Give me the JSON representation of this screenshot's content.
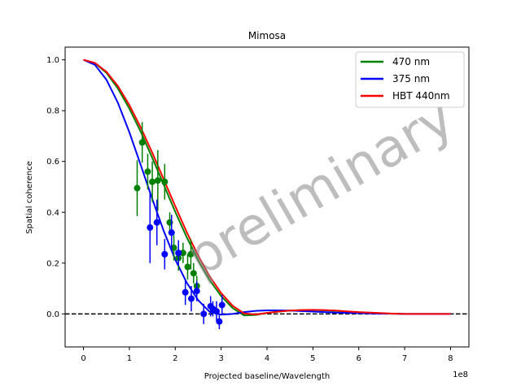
{
  "chart_data": {
    "type": "scatter",
    "title": "Mimosa",
    "xlabel": "Projected baseline/Wavelength",
    "ylabel": "Spatial coherence",
    "x_offset_text": "1e8",
    "xlim": [
      -0.4,
      8.4
    ],
    "ylim": [
      -0.13,
      1.05
    ],
    "x_ticks": [
      0,
      1,
      2,
      3,
      4,
      5,
      6,
      7,
      8
    ],
    "x_tick_labels": [
      "0",
      "1",
      "2",
      "3",
      "4",
      "5",
      "6",
      "7",
      "8"
    ],
    "y_ticks": [
      0.0,
      0.2,
      0.4,
      0.6,
      0.8,
      1.0
    ],
    "y_tick_labels": [
      "0.0",
      "0.2",
      "0.4",
      "0.6",
      "0.8",
      "1.0"
    ],
    "grid": false,
    "legend_position": "top-right",
    "watermark": "preliminary",
    "reference_line": {
      "y": 0.0,
      "style": "dashed",
      "color": "#000000"
    },
    "curves": [
      {
        "name": "470 nm",
        "color": "#008000",
        "x": [
          0,
          0.25,
          0.5,
          0.75,
          1,
          1.25,
          1.5,
          1.75,
          2,
          2.25,
          2.5,
          2.75,
          3,
          3.25,
          3.5,
          3.75,
          4,
          4.25,
          4.5,
          4.75,
          5,
          5.25,
          5.5,
          5.75,
          6,
          6.25,
          6.5,
          6.75,
          7,
          7.25,
          7.5,
          7.75,
          8
        ],
        "y": [
          1.0,
          0.987,
          0.949,
          0.887,
          0.808,
          0.716,
          0.614,
          0.508,
          0.402,
          0.302,
          0.211,
          0.133,
          0.07,
          0.023,
          -0.006,
          -0.004,
          0.004,
          0.009,
          0.013,
          0.015,
          0.015,
          0.014,
          0.012,
          0.009,
          0.006,
          0.004,
          0.002,
          0.001,
          0.0,
          0.0,
          0.0,
          0.0,
          0.0
        ]
      },
      {
        "name": "375 nm",
        "color": "#0000ff",
        "x": [
          0,
          0.25,
          0.5,
          0.75,
          1,
          1.25,
          1.5,
          1.75,
          2,
          2.25,
          2.5,
          2.75,
          3,
          3.25,
          3.5,
          3.75,
          4,
          4.25,
          4.5,
          4.75,
          5,
          5.25,
          5.5,
          5.75,
          6,
          6.25,
          6.5,
          6.75,
          7,
          7.25,
          7.5,
          7.75,
          8
        ],
        "y": [
          1.0,
          0.98,
          0.922,
          0.831,
          0.715,
          0.585,
          0.452,
          0.326,
          0.214,
          0.123,
          0.054,
          0.008,
          -0.003,
          0.0,
          0.007,
          0.012,
          0.014,
          0.014,
          0.013,
          0.011,
          0.009,
          0.007,
          0.005,
          0.004,
          0.003,
          0.002,
          0.001,
          0.001,
          0.0,
          0.0,
          0.0,
          0.0,
          0.0
        ]
      },
      {
        "name": "HBT 440nm",
        "color": "#ff0000",
        "x": [
          0,
          0.25,
          0.5,
          0.75,
          1,
          1.25,
          1.5,
          1.75,
          2,
          2.25,
          2.5,
          2.75,
          3,
          3.25,
          3.5,
          3.75,
          4,
          4.25,
          4.5,
          4.75,
          5,
          5.25,
          5.5,
          5.75,
          6,
          6.25,
          6.5,
          6.75,
          7,
          7.25,
          7.5,
          7.75,
          8
        ],
        "y": [
          1.0,
          0.988,
          0.953,
          0.897,
          0.822,
          0.733,
          0.634,
          0.529,
          0.424,
          0.322,
          0.229,
          0.148,
          0.082,
          0.032,
          0.002,
          -0.002,
          0.004,
          0.009,
          0.013,
          0.015,
          0.016,
          0.015,
          0.013,
          0.01,
          0.007,
          0.005,
          0.003,
          0.001,
          0.0,
          0.0,
          0.0,
          0.0,
          0.0
        ]
      }
    ],
    "points": [
      {
        "series": "470 nm",
        "color": "#008000",
        "data": [
          {
            "x": 1.17,
            "y": 0.495,
            "err": 0.11
          },
          {
            "x": 1.28,
            "y": 0.675,
            "err": 0.08
          },
          {
            "x": 1.4,
            "y": 0.56,
            "err": 0.07
          },
          {
            "x": 1.5,
            "y": 0.52,
            "err": 0.08
          },
          {
            "x": 1.62,
            "y": 0.525,
            "err": 0.12
          },
          {
            "x": 1.77,
            "y": 0.52,
            "err": 0.07
          },
          {
            "x": 1.88,
            "y": 0.36,
            "err": 0.04
          },
          {
            "x": 1.97,
            "y": 0.26,
            "err": 0.05
          },
          {
            "x": 2.07,
            "y": 0.22,
            "err": 0.05
          },
          {
            "x": 2.17,
            "y": 0.24,
            "err": 0.04
          },
          {
            "x": 2.27,
            "y": 0.185,
            "err": 0.05
          },
          {
            "x": 2.34,
            "y": 0.235,
            "err": 0.06
          },
          {
            "x": 2.4,
            "y": 0.16,
            "err": 0.04
          },
          {
            "x": 2.47,
            "y": 0.11,
            "err": 0.04
          }
        ]
      },
      {
        "series": "375 nm",
        "color": "#0000ff",
        "data": [
          {
            "x": 1.45,
            "y": 0.34,
            "err": 0.14
          },
          {
            "x": 1.6,
            "y": 0.36,
            "err": 0.09
          },
          {
            "x": 1.77,
            "y": 0.235,
            "err": 0.06
          },
          {
            "x": 1.92,
            "y": 0.32,
            "err": 0.07
          },
          {
            "x": 2.07,
            "y": 0.24,
            "err": 0.05
          },
          {
            "x": 2.22,
            "y": 0.085,
            "err": 0.05
          },
          {
            "x": 2.35,
            "y": 0.06,
            "err": 0.05
          },
          {
            "x": 2.47,
            "y": 0.09,
            "err": 0.04
          },
          {
            "x": 2.62,
            "y": 0.0,
            "err": 0.04
          },
          {
            "x": 2.77,
            "y": 0.03,
            "err": 0.04
          },
          {
            "x": 2.82,
            "y": 0.02,
            "err": 0.03
          },
          {
            "x": 2.9,
            "y": 0.01,
            "err": 0.04
          },
          {
            "x": 2.96,
            "y": -0.03,
            "err": 0.03
          },
          {
            "x": 3.02,
            "y": 0.035,
            "err": 0.04
          }
        ]
      }
    ]
  }
}
